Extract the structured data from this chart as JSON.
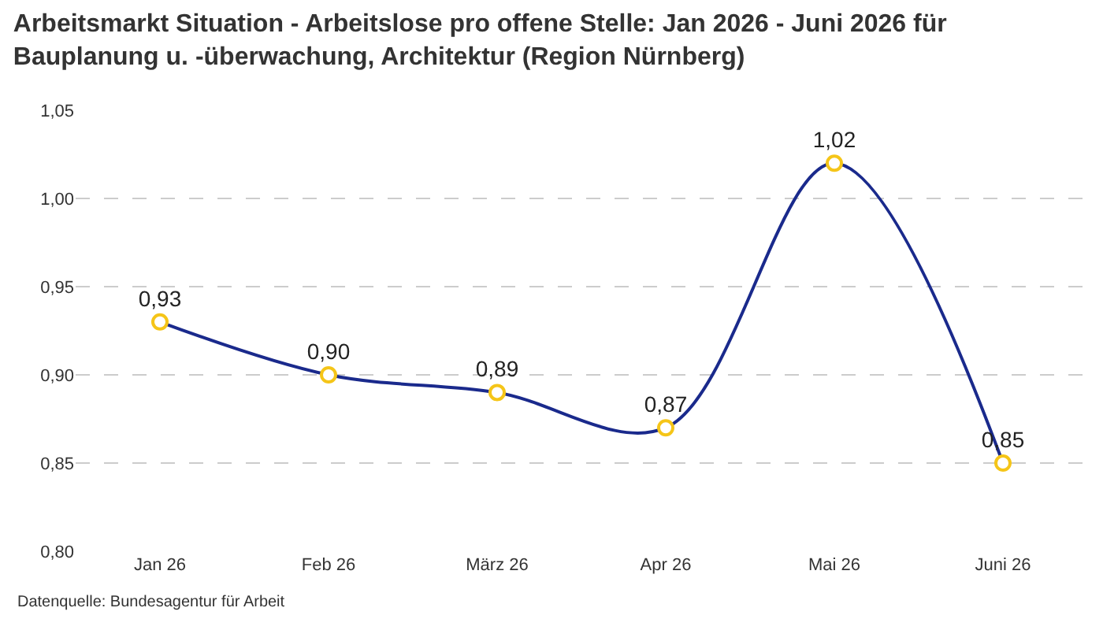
{
  "chart_data": {
    "type": "line",
    "title": "Arbeitsmarkt Situation - Arbeitslose pro offene Stelle: Jan 2026 - Juni 2026 für Bauplanung u. -überwachung, Architektur (Region Nürnberg)",
    "categories": [
      "Jan 26",
      "Feb 26",
      "März 26",
      "Apr 26",
      "Mai 26",
      "Juni 26"
    ],
    "series": [
      {
        "color": "#1a2a8c",
        "values": [
          0.93,
          0.9,
          0.89,
          0.87,
          1.02,
          0.85
        ],
        "value_labels": [
          "0,93",
          "0,90",
          "0,89",
          "0,87",
          "1,02",
          "0,85"
        ]
      }
    ],
    "ylim": [
      0.8,
      1.05
    ],
    "yticks": [
      {
        "value": 0.8,
        "label": "0,80"
      },
      {
        "value": 0.85,
        "label": "0,85"
      },
      {
        "value": 0.9,
        "label": "0,90"
      },
      {
        "value": 0.95,
        "label": "0,95"
      },
      {
        "value": 1.0,
        "label": "1,00"
      },
      {
        "value": 1.05,
        "label": "1,05"
      }
    ],
    "grid": "y",
    "marker": "circle",
    "line_style": "solid",
    "annotations": [
      "Datenquelle: Bundesagentur für Arbeit"
    ]
  }
}
